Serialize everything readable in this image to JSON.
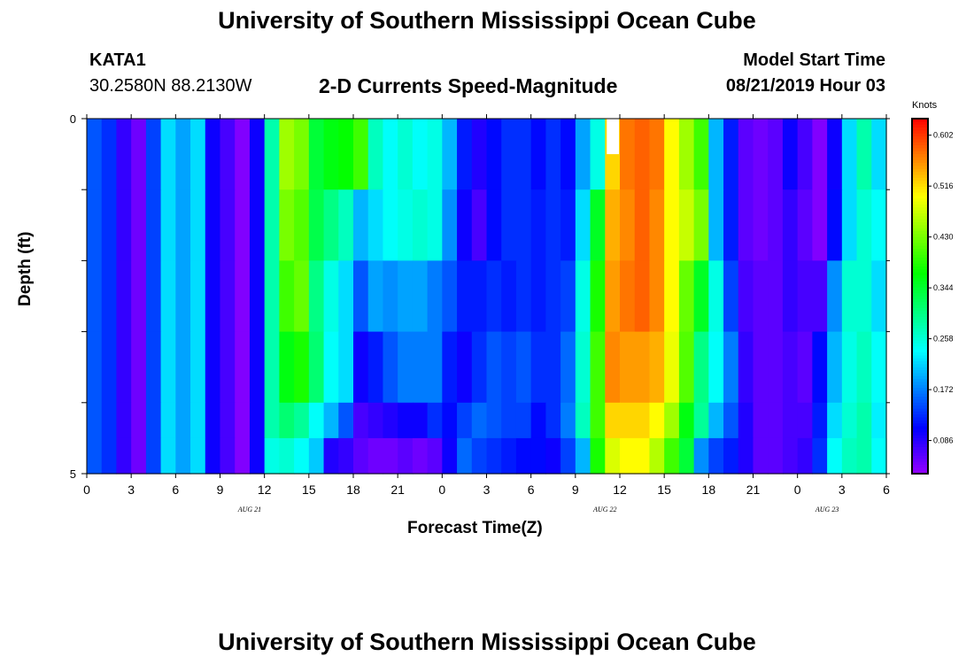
{
  "header": {
    "title": "University of Southern Mississippi Ocean Cube",
    "station": "KATA1",
    "coords": "30.2580N 88.2130W",
    "chart_title": "2-D Currents Speed-Magnitude",
    "model_label": "Model Start Time",
    "model_time": "08/21/2019 Hour 03",
    "footer_title": "University of Southern Mississippi Ocean Cube"
  },
  "chart_data": {
    "type": "heatmap",
    "title": "2-D Currents Speed-Magnitude",
    "xlabel": "Forecast Time(Z)",
    "ylabel": "Depth (ft)",
    "x_tick_labels": [
      "0",
      "3",
      "6",
      "9",
      "12",
      "15",
      "18",
      "21",
      "0",
      "3",
      "6",
      "9",
      "12",
      "15",
      "18",
      "21",
      "0",
      "3",
      "6"
    ],
    "date_labels": [
      {
        "label": "AUG 21",
        "hour_index": 11
      },
      {
        "label": "AUG 22",
        "hour_index": 35
      },
      {
        "label": "AUG 23",
        "hour_index": 50
      }
    ],
    "y_tick_labels": [
      "0",
      "5"
    ],
    "ylim": [
      0,
      5
    ],
    "x_hours": 54,
    "depth_rows": 5,
    "colorbar": {
      "label": "Knots",
      "ticks": [
        "0.602",
        "0.516",
        "0.430",
        "0.344",
        "0.258",
        "0.172",
        "0.086"
      ],
      "range": [
        0.03,
        0.63
      ]
    },
    "missing_cell": {
      "hour": 35,
      "row": 0,
      "subrow": "top"
    },
    "row_speeds_knots": [
      [
        0.15,
        0.13,
        0.08,
        0.05,
        0.14,
        0.22,
        0.19,
        0.22,
        0.1,
        0.07,
        0.04,
        0.1,
        0.28,
        0.45,
        0.43,
        0.34,
        0.36,
        0.37,
        0.4,
        0.27,
        0.24,
        0.26,
        0.24,
        0.25,
        0.2,
        0.12,
        0.09,
        0.11,
        0.13,
        0.13,
        0.11,
        0.13,
        0.11,
        0.19,
        0.25,
        0.52,
        0.57,
        0.58,
        0.57,
        0.5,
        0.45,
        0.4,
        0.2,
        0.12,
        0.06,
        0.05,
        0.06,
        0.1,
        0.07,
        0.04,
        0.1,
        0.22,
        0.28,
        0.22
      ],
      [
        0.15,
        0.13,
        0.08,
        0.05,
        0.14,
        0.22,
        0.19,
        0.22,
        0.1,
        0.07,
        0.04,
        0.1,
        0.28,
        0.43,
        0.41,
        0.33,
        0.3,
        0.27,
        0.2,
        0.22,
        0.24,
        0.25,
        0.26,
        0.25,
        0.18,
        0.1,
        0.07,
        0.11,
        0.13,
        0.13,
        0.12,
        0.13,
        0.12,
        0.22,
        0.35,
        0.54,
        0.56,
        0.58,
        0.56,
        0.5,
        0.47,
        0.43,
        0.2,
        0.12,
        0.06,
        0.05,
        0.06,
        0.08,
        0.06,
        0.04,
        0.11,
        0.22,
        0.26,
        0.24
      ],
      [
        0.15,
        0.13,
        0.08,
        0.05,
        0.14,
        0.22,
        0.19,
        0.22,
        0.1,
        0.07,
        0.04,
        0.1,
        0.28,
        0.4,
        0.42,
        0.3,
        0.25,
        0.22,
        0.15,
        0.19,
        0.18,
        0.19,
        0.19,
        0.17,
        0.15,
        0.12,
        0.12,
        0.13,
        0.12,
        0.13,
        0.12,
        0.13,
        0.14,
        0.25,
        0.38,
        0.55,
        0.57,
        0.58,
        0.56,
        0.5,
        0.42,
        0.35,
        0.25,
        0.14,
        0.07,
        0.06,
        0.06,
        0.08,
        0.07,
        0.07,
        0.18,
        0.26,
        0.26,
        0.22
      ],
      [
        0.15,
        0.13,
        0.08,
        0.05,
        0.14,
        0.22,
        0.19,
        0.22,
        0.1,
        0.07,
        0.04,
        0.1,
        0.28,
        0.36,
        0.38,
        0.31,
        0.24,
        0.22,
        0.1,
        0.12,
        0.15,
        0.17,
        0.17,
        0.17,
        0.12,
        0.1,
        0.13,
        0.15,
        0.14,
        0.15,
        0.13,
        0.13,
        0.16,
        0.26,
        0.4,
        0.56,
        0.55,
        0.55,
        0.54,
        0.49,
        0.41,
        0.3,
        0.24,
        0.17,
        0.08,
        0.06,
        0.06,
        0.07,
        0.06,
        0.11,
        0.2,
        0.25,
        0.27,
        0.24
      ],
      [
        0.15,
        0.13,
        0.08,
        0.05,
        0.14,
        0.22,
        0.19,
        0.22,
        0.1,
        0.07,
        0.04,
        0.1,
        0.28,
        0.31,
        0.29,
        0.24,
        0.2,
        0.15,
        0.07,
        0.08,
        0.09,
        0.1,
        0.1,
        0.13,
        0.11,
        0.14,
        0.16,
        0.15,
        0.14,
        0.14,
        0.11,
        0.13,
        0.17,
        0.27,
        0.4,
        0.52,
        0.52,
        0.52,
        0.5,
        0.45,
        0.36,
        0.29,
        0.2,
        0.15,
        0.09,
        0.06,
        0.06,
        0.07,
        0.07,
        0.12,
        0.22,
        0.26,
        0.28,
        0.23
      ]
    ],
    "bottom_strip_speeds_knots": [
      0.15,
      0.13,
      0.08,
      0.05,
      0.14,
      0.22,
      0.19,
      0.22,
      0.1,
      0.07,
      0.04,
      0.1,
      0.25,
      0.26,
      0.24,
      0.21,
      0.09,
      0.08,
      0.06,
      0.05,
      0.05,
      0.06,
      0.05,
      0.06,
      0.1,
      0.16,
      0.14,
      0.13,
      0.12,
      0.11,
      0.11,
      0.1,
      0.14,
      0.2,
      0.38,
      0.48,
      0.5,
      0.5,
      0.46,
      0.4,
      0.34,
      0.18,
      0.14,
      0.12,
      0.09,
      0.06,
      0.06,
      0.07,
      0.08,
      0.13,
      0.24,
      0.27,
      0.28,
      0.24
    ]
  }
}
